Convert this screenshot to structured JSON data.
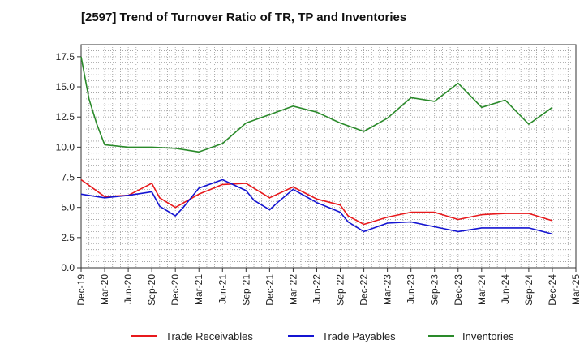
{
  "chart_data": {
    "type": "line",
    "title": "[2597]  Trend of Turnover Ratio of TR, TP and Inventories",
    "xlabel": "",
    "ylabel": "",
    "ylim": [
      0,
      18.5
    ],
    "yticks": [
      0,
      2.5,
      5,
      7.5,
      10,
      12.5,
      15,
      17.5
    ],
    "ytick_labels": [
      "0.0",
      "2.5",
      "5.0",
      "7.5",
      "10.0",
      "12.5",
      "15.0",
      "17.5"
    ],
    "x_tick_labels": [
      "Dec-19",
      "Mar-20",
      "Jun-20",
      "Sep-20",
      "Dec-20",
      "Mar-21",
      "Jun-21",
      "Sep-21",
      "Dec-21",
      "Mar-22",
      "Jun-22",
      "Sep-22",
      "Dec-22",
      "Mar-23",
      "Jun-23",
      "Sep-23",
      "Dec-23",
      "Mar-24",
      "Jun-24",
      "Sep-24",
      "Dec-24",
      "Mar-25"
    ],
    "x_months": [
      "Dec-19",
      "Jan-20",
      "Feb-20",
      "Mar-20",
      "Apr-20",
      "May-20",
      "Jun-20",
      "Jul-20",
      "Aug-20",
      "Sep-20",
      "Oct-20",
      "Nov-20",
      "Dec-20",
      "Jan-21",
      "Feb-21",
      "Mar-21",
      "Apr-21",
      "May-21",
      "Jun-21",
      "Jul-21",
      "Aug-21",
      "Sep-21",
      "Oct-21",
      "Nov-21",
      "Dec-21",
      "Jan-22",
      "Feb-22",
      "Mar-22",
      "Apr-22",
      "May-22",
      "Jun-22",
      "Jul-22",
      "Aug-22",
      "Sep-22",
      "Oct-22",
      "Nov-22",
      "Dec-22",
      "Jan-23",
      "Feb-23",
      "Mar-23",
      "Apr-23",
      "May-23",
      "Jun-23",
      "Jul-23",
      "Aug-23",
      "Sep-23",
      "Oct-23",
      "Nov-23",
      "Dec-23",
      "Jan-24",
      "Feb-24",
      "Mar-24",
      "Apr-24",
      "May-24",
      "Jun-24",
      "Jul-24",
      "Aug-24",
      "Sep-24",
      "Oct-24",
      "Nov-24",
      "Dec-24",
      "Jan-25",
      "Feb-25",
      "Mar-25"
    ],
    "grid": true,
    "legend_position": "bottom",
    "series": [
      {
        "name": "Trade Receivables",
        "color": "#e8191c",
        "x": [
          "Dec-19",
          "Mar-20",
          "Jun-20",
          "Sep-20",
          "Oct-20",
          "Dec-20",
          "Mar-21",
          "Jun-21",
          "Sep-21",
          "Dec-21",
          "Mar-22",
          "Jun-22",
          "Sep-22",
          "Oct-22",
          "Dec-22",
          "Mar-23",
          "Jun-23",
          "Sep-23",
          "Dec-23",
          "Mar-24",
          "Jun-24",
          "Sep-24",
          "Dec-24"
        ],
        "values": [
          7.3,
          5.9,
          6.0,
          7.0,
          5.8,
          5.0,
          6.1,
          6.9,
          7.0,
          5.8,
          6.7,
          5.7,
          5.2,
          4.3,
          3.6,
          4.2,
          4.6,
          4.6,
          4.0,
          4.4,
          4.5,
          4.5,
          3.9
        ]
      },
      {
        "name": "Trade Payables",
        "color": "#1414d2",
        "x": [
          "Dec-19",
          "Mar-20",
          "Jun-20",
          "Sep-20",
          "Oct-20",
          "Dec-20",
          "Jan-21",
          "Mar-21",
          "Jun-21",
          "Sep-21",
          "Oct-21",
          "Dec-21",
          "Jan-22",
          "Mar-22",
          "Jun-22",
          "Sep-22",
          "Oct-22",
          "Dec-22",
          "Mar-23",
          "Jun-23",
          "Sep-23",
          "Dec-23",
          "Mar-24",
          "Jun-24",
          "Sep-24",
          "Dec-24"
        ],
        "values": [
          6.1,
          5.8,
          6.0,
          6.3,
          5.1,
          4.3,
          5.0,
          6.6,
          7.3,
          6.4,
          5.6,
          4.8,
          5.4,
          6.5,
          5.4,
          4.6,
          3.8,
          3.0,
          3.7,
          3.8,
          3.4,
          3.0,
          3.3,
          3.3,
          3.3,
          2.8
        ]
      },
      {
        "name": "Inventories",
        "color": "#2a8a2a",
        "x": [
          "Dec-19",
          "Jan-20",
          "Feb-20",
          "Mar-20",
          "Jun-20",
          "Sep-20",
          "Dec-20",
          "Mar-21",
          "Jun-21",
          "Sep-21",
          "Dec-21",
          "Mar-22",
          "Jun-22",
          "Sep-22",
          "Dec-22",
          "Mar-23",
          "Jun-23",
          "Sep-23",
          "Dec-23",
          "Mar-24",
          "Jun-24",
          "Sep-24",
          "Dec-24"
        ],
        "values": [
          17.5,
          14.0,
          11.9,
          10.2,
          10.0,
          10.0,
          9.9,
          9.6,
          10.3,
          12.0,
          12.7,
          13.4,
          12.9,
          12.0,
          11.3,
          12.4,
          14.1,
          13.8,
          15.3,
          13.3,
          13.9,
          11.9,
          13.3
        ]
      }
    ]
  }
}
